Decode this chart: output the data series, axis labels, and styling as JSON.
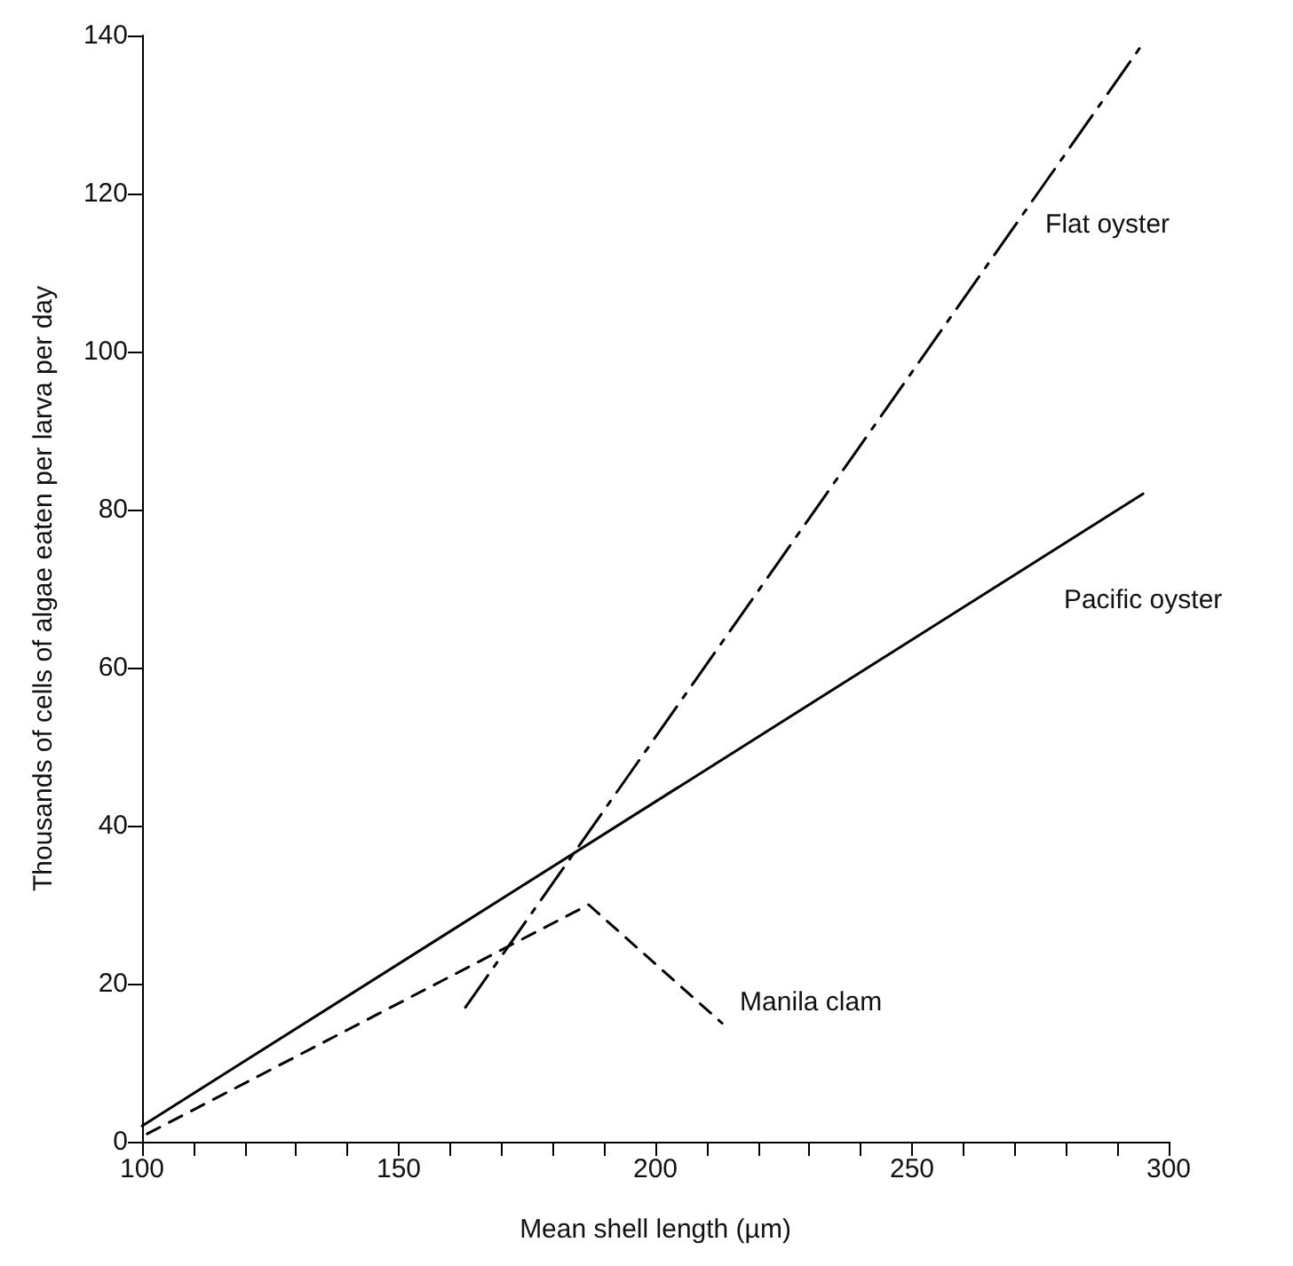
{
  "chart_data": {
    "type": "line",
    "xlabel": "Mean shell length (µm)",
    "ylabel": "Thousands of cells of algae eaten per larva per day",
    "series": [
      {
        "name": "Pacific oyster",
        "color": "#000000",
        "line_style": "solid",
        "x": [
          100,
          295
        ],
        "values": [
          2,
          82
        ]
      },
      {
        "name": "Flat oyster",
        "color": "#000000",
        "line_style": "dashdot",
        "x": [
          163,
          295
        ],
        "values": [
          17,
          139
        ]
      },
      {
        "name": "Manila clam",
        "color": "#000000",
        "line_style": "dashed",
        "x": [
          101,
          187,
          213
        ],
        "values": [
          1,
          30,
          15
        ]
      }
    ],
    "xlim": [
      100,
      300
    ],
    "xticks": [
      100,
      {
        "value": 110,
        "label": null
      },
      {
        "value": 120,
        "label": null
      },
      {
        "value": 130,
        "label": null
      },
      {
        "value": 140,
        "label": null
      },
      150,
      {
        "value": 160,
        "label": null
      },
      {
        "value": 170,
        "label": null
      },
      {
        "value": 180,
        "label": null
      },
      {
        "value": 190,
        "label": null
      },
      200,
      {
        "value": 210,
        "label": null
      },
      {
        "value": 220,
        "label": null
      },
      {
        "value": 230,
        "label": null
      },
      {
        "value": 240,
        "label": null
      },
      250,
      {
        "value": 260,
        "label": null
      },
      {
        "value": 270,
        "label": null
      },
      {
        "value": 280,
        "label": null
      },
      {
        "value": 290,
        "label": null
      },
      300
    ],
    "ylim": [
      0,
      140
    ],
    "yticks": [
      0,
      20,
      40,
      60,
      80,
      100,
      120,
      140
    ],
    "grid": false,
    "legend": false,
    "marker": "none"
  }
}
